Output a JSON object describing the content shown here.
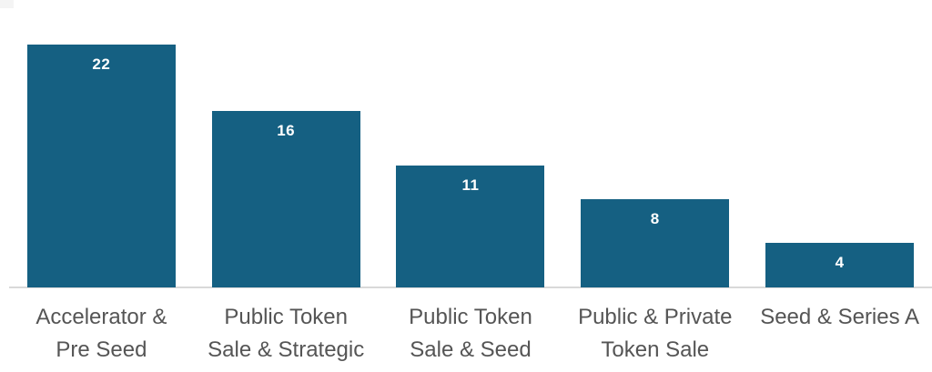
{
  "chart_data": {
    "type": "bar",
    "categories": [
      "Accelerator &\nPre Seed",
      "Public Token\nSale & Strategic",
      "Public Token\nSale & Seed",
      "Public & Private\nToken Sale",
      "Seed & Series A"
    ],
    "values": [
      22,
      16,
      11,
      8,
      4
    ],
    "title": "",
    "xlabel": "",
    "ylabel": "",
    "value_labels_shown": true,
    "grid": false,
    "legend": "none",
    "colors": {
      "bar_fill": "#156082",
      "value_label": "#ffffff",
      "category_label": "#555555",
      "axis_line": "#d9d9d9"
    }
  }
}
